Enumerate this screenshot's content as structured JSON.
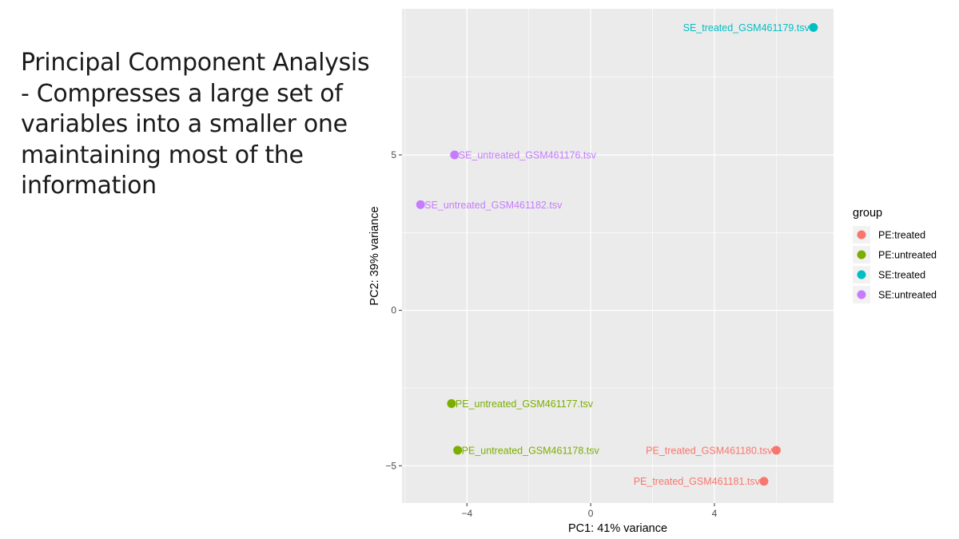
{
  "slide": {
    "text_lines": [
      "Principal Component Analysis",
      "- Compresses a large set of",
      "variables into a smaller one",
      "maintaining most of the",
      "information"
    ]
  },
  "chart_data": {
    "type": "scatter",
    "xlabel": "PC1: 41% variance",
    "ylabel": "PC2: 39% variance",
    "xlim": [
      -6.1,
      7.85
    ],
    "ylim": [
      -6.2,
      9.7
    ],
    "xticks": [
      -4,
      0,
      4
    ],
    "xtick_labels": [
      "−4",
      "0",
      "4"
    ],
    "yticks": [
      -5,
      0,
      5
    ],
    "ytick_labels": [
      "−5",
      "0",
      "5"
    ],
    "grid": true,
    "background": "#ebebeb",
    "legend": {
      "title": "group",
      "placement": "right",
      "entries": [
        {
          "label": "PE:treated",
          "color": "#f8766d"
        },
        {
          "label": "PE:untreated",
          "color": "#7cae00"
        },
        {
          "label": "SE:treated",
          "color": "#00bfc4"
        },
        {
          "label": "SE:untreated",
          "color": "#c77cff"
        }
      ]
    },
    "series": [
      {
        "name": "PE:treated",
        "color": "#f8766d",
        "points": [
          {
            "x": 6.0,
            "y": -4.5,
            "label": "PE_treated_GSM461180.tsv"
          },
          {
            "x": 5.6,
            "y": -5.5,
            "label": "PE_treated_GSM461181.tsv"
          }
        ]
      },
      {
        "name": "PE:untreated",
        "color": "#7cae00",
        "points": [
          {
            "x": -4.5,
            "y": -3.0,
            "label": "PE_untreated_GSM461177.tsv"
          },
          {
            "x": -4.3,
            "y": -4.5,
            "label": "PE_untreated_GSM461178.tsv"
          }
        ]
      },
      {
        "name": "SE:treated",
        "color": "#00bfc4",
        "points": [
          {
            "x": 7.2,
            "y": 9.1,
            "label": "SE_treated_GSM461179.tsv"
          }
        ]
      },
      {
        "name": "SE:untreated",
        "color": "#c77cff",
        "points": [
          {
            "x": -4.4,
            "y": 5.0,
            "label": "SE_untreated_GSM461176.tsv"
          },
          {
            "x": -5.5,
            "y": 3.4,
            "label": "SE_untreated_GSM461182.tsv"
          }
        ]
      }
    ]
  }
}
